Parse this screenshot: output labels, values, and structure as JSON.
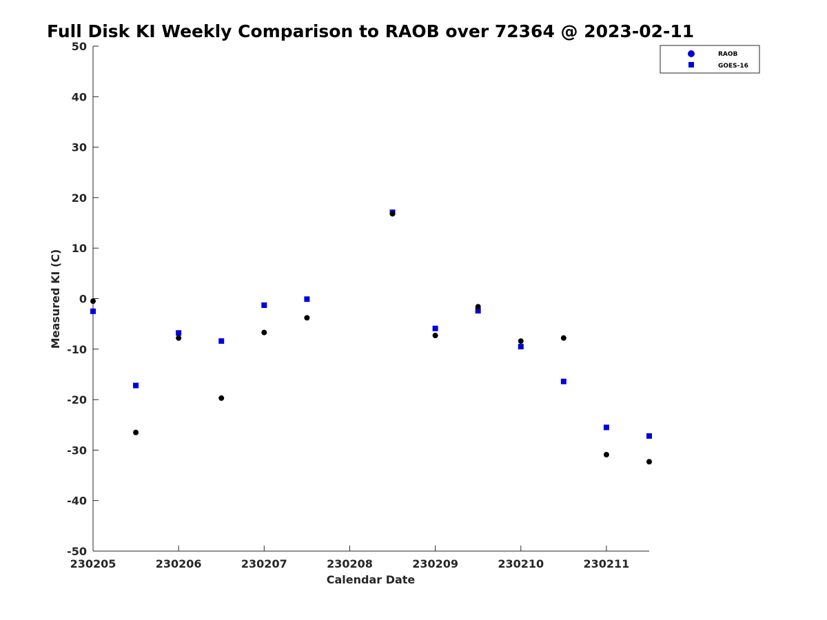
{
  "chart_data": {
    "type": "scatter",
    "title": "Full Disk KI Weekly Comparison to RAOB over 72364 @ 2023-02-11",
    "xlabel": "Calendar Date",
    "ylabel": "Measured KI (C)",
    "xlim": [
      230205,
      230211.5
    ],
    "ylim": [
      -50,
      50
    ],
    "xticks": [
      230205,
      230206,
      230207,
      230208,
      230209,
      230210,
      230211
    ],
    "xtick_labels": [
      "230205",
      "230206",
      "230207",
      "230208",
      "230209",
      "230210",
      "230211"
    ],
    "yticks": [
      -50,
      -40,
      -30,
      -20,
      -10,
      0,
      10,
      20,
      30,
      40,
      50
    ],
    "ytick_labels": [
      "-50",
      "-40",
      "-30",
      "-20",
      "-10",
      "0",
      "10",
      "20",
      "30",
      "40",
      "50"
    ],
    "grid": false,
    "legend_position": "top-right",
    "series": [
      {
        "name": "RAOB",
        "marker": "circle",
        "color": "#000000",
        "legend_color": "#0000dd",
        "points": [
          {
            "x": 230205.0,
            "y": -0.5
          },
          {
            "x": 230205.5,
            "y": -26.5
          },
          {
            "x": 230206.0,
            "y": -7.8
          },
          {
            "x": 230206.5,
            "y": -19.7
          },
          {
            "x": 230207.0,
            "y": -6.7
          },
          {
            "x": 230207.5,
            "y": -3.8
          },
          {
            "x": 230208.5,
            "y": 16.8
          },
          {
            "x": 230209.0,
            "y": -7.3
          },
          {
            "x": 230209.5,
            "y": -1.6
          },
          {
            "x": 230210.0,
            "y": -8.4
          },
          {
            "x": 230210.5,
            "y": -7.8
          },
          {
            "x": 230211.0,
            "y": -30.9
          },
          {
            "x": 230211.5,
            "y": -32.3
          }
        ]
      },
      {
        "name": "GOES-16",
        "marker": "square",
        "color": "#0000dd",
        "legend_color": "#0000dd",
        "points": [
          {
            "x": 230205.0,
            "y": -2.5
          },
          {
            "x": 230205.5,
            "y": -17.2
          },
          {
            "x": 230206.0,
            "y": -6.8
          },
          {
            "x": 230206.5,
            "y": -8.4
          },
          {
            "x": 230207.0,
            "y": -1.3
          },
          {
            "x": 230207.5,
            "y": -0.1
          },
          {
            "x": 230208.5,
            "y": 17.1
          },
          {
            "x": 230209.0,
            "y": -5.9
          },
          {
            "x": 230209.5,
            "y": -2.4
          },
          {
            "x": 230210.0,
            "y": -9.5
          },
          {
            "x": 230210.5,
            "y": -16.4
          },
          {
            "x": 230211.0,
            "y": -25.5
          },
          {
            "x": 230211.5,
            "y": -27.2
          }
        ]
      }
    ]
  }
}
